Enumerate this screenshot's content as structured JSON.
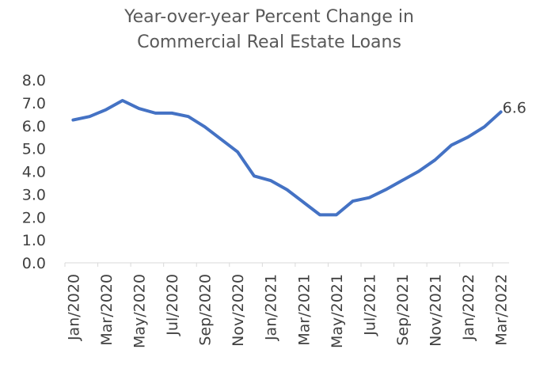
{
  "chart_data": {
    "type": "line",
    "title": [
      "Year-over-year Percent Change in",
      "Commercial Real Estate Loans"
    ],
    "categories": [
      "Jan/2020",
      null,
      "Mar/2020",
      null,
      "May/2020",
      null,
      "Jul/2020",
      null,
      "Sep/2020",
      null,
      "Nov/2020",
      null,
      "Jan/2021",
      null,
      "Mar/2021",
      null,
      "May/2021",
      null,
      "Jul/2021",
      null,
      "Sep/2021",
      null,
      "Nov/2021",
      null,
      "Jan/2022",
      null,
      "Mar/2022"
    ],
    "values": [
      6.25,
      6.4,
      6.7,
      7.1,
      6.75,
      6.55,
      6.55,
      6.4,
      5.95,
      5.4,
      4.85,
      3.8,
      3.6,
      3.2,
      2.65,
      2.1,
      2.1,
      2.7,
      2.85,
      3.2,
      3.6,
      4.0,
      4.5,
      5.15,
      5.5,
      5.95,
      6.6
    ],
    "color": "#4472c4",
    "label_last": true,
    "ylim": [
      0,
      8
    ],
    "yticks": [
      {
        "value": 0,
        "label": "0.0"
      },
      {
        "value": 1,
        "label": "1.0"
      },
      {
        "value": 2,
        "label": "2.0"
      },
      {
        "value": 3,
        "label": "3.0"
      },
      {
        "value": 4,
        "label": "4.0"
      },
      {
        "value": 5,
        "label": "5.0"
      },
      {
        "value": 6,
        "label": "6.0"
      },
      {
        "value": 7,
        "label": "7.0"
      },
      {
        "value": 8,
        "label": "8.0"
      }
    ],
    "grid": false
  }
}
